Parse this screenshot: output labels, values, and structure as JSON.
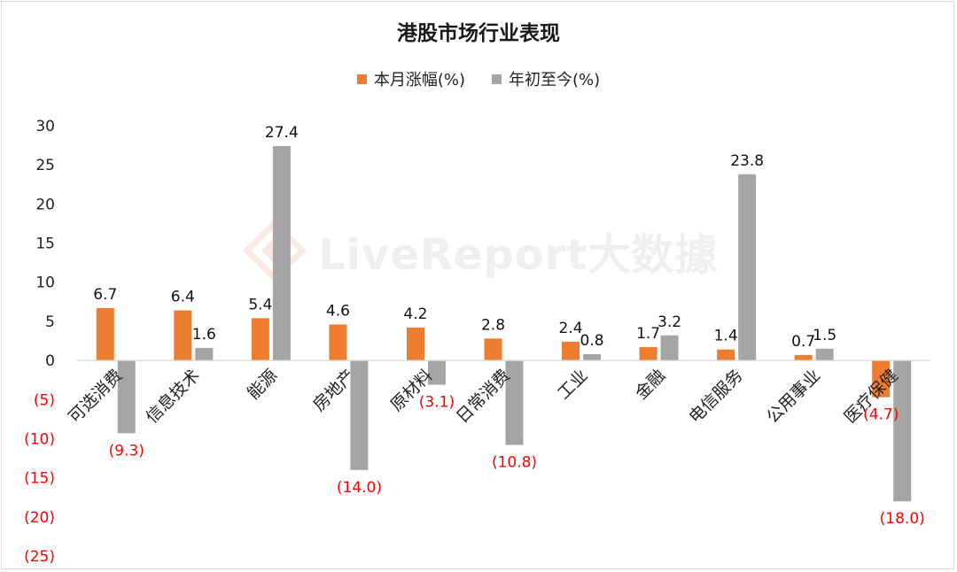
{
  "chart_data": {
    "type": "bar",
    "title": "港股市场行业表现",
    "categories": [
      "可选消费",
      "信息技术",
      "能源",
      "房地产",
      "原材料",
      "日常消费",
      "工业",
      "金融",
      "电信服务",
      "公用事业",
      "医疗保健"
    ],
    "series": [
      {
        "name": "本月涨幅(%)",
        "color": "#ed7d31",
        "values": [
          6.7,
          6.4,
          5.4,
          4.6,
          4.2,
          2.8,
          2.4,
          1.7,
          1.4,
          0.7,
          -4.7
        ],
        "labels": [
          "6.7",
          "6.4",
          "5.4",
          "4.6",
          "4.2",
          "2.8",
          "2.4",
          "1.7",
          "1.4",
          "0.7",
          "(4.7)"
        ]
      },
      {
        "name": "年初至今(%)",
        "color": "#a5a5a5",
        "values": [
          -9.3,
          1.6,
          27.4,
          -14.0,
          -3.1,
          -10.8,
          0.8,
          3.2,
          23.8,
          1.5,
          -18.0
        ],
        "labels": [
          "(9.3)",
          "1.6",
          "27.4",
          "(14.0)",
          "(3.1)",
          "(10.8)",
          "0.8",
          "3.2",
          "23.8",
          "1.5",
          "(18.0)"
        ]
      }
    ],
    "ylim": [
      -25,
      30
    ],
    "yticks": [
      30,
      25,
      20,
      15,
      10,
      5,
      0,
      -5,
      -10,
      -15,
      -20,
      -25
    ],
    "ytick_labels": [
      "30",
      "25",
      "20",
      "15",
      "10",
      "5",
      "0",
      "(5)",
      "(10)",
      "(15)",
      "(20)",
      "(25)"
    ],
    "negative_label_color": "#ff0000",
    "legend_position": "top",
    "grid": false
  },
  "watermark": {
    "text": "LiveReport大数據"
  }
}
